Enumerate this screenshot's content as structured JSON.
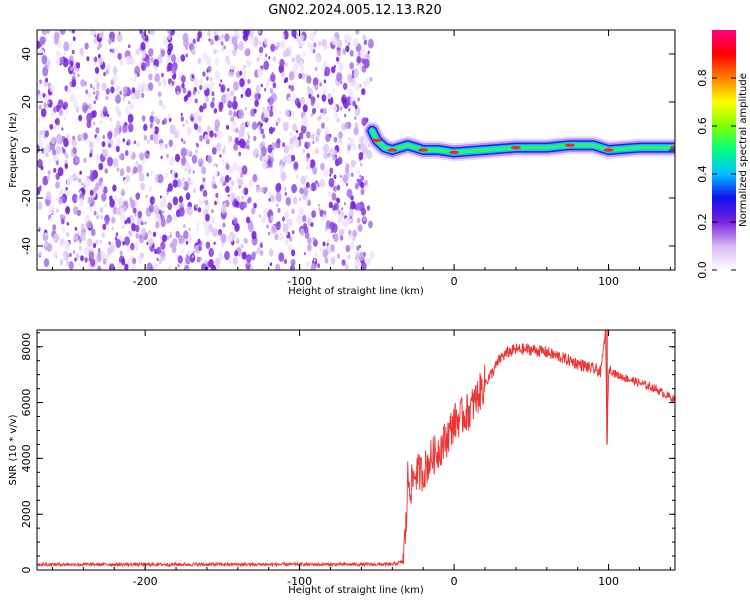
{
  "title": "GN02.2024.005.12.13.R20",
  "chart_data": [
    {
      "type": "heatmap",
      "xlabel": "Height of straight line (km)",
      "ylabel": "Frequency (Hz)",
      "xlim": [
        -270,
        143
      ],
      "ylim": [
        -50,
        50
      ],
      "x_ticks": [
        -200,
        -100,
        0,
        100
      ],
      "y_ticks": [
        -40,
        -20,
        0,
        20,
        40
      ],
      "noise_region_x": [
        -270,
        -53
      ],
      "signal_track": [
        {
          "x": -53,
          "y": 8
        },
        {
          "x": -50,
          "y": 4
        },
        {
          "x": -45,
          "y": 1
        },
        {
          "x": -40,
          "y": 0
        },
        {
          "x": -30,
          "y": 2
        },
        {
          "x": -20,
          "y": 0
        },
        {
          "x": -10,
          "y": 0
        },
        {
          "x": 0,
          "y": -1
        },
        {
          "x": 20,
          "y": 0
        },
        {
          "x": 40,
          "y": 1
        },
        {
          "x": 60,
          "y": 1
        },
        {
          "x": 75,
          "y": 2
        },
        {
          "x": 90,
          "y": 2
        },
        {
          "x": 100,
          "y": 0
        },
        {
          "x": 120,
          "y": 1
        },
        {
          "x": 143,
          "y": 1
        }
      ],
      "colorbar": {
        "label": "Normalized spectral amplitude",
        "ticks": [
          0.0,
          0.2,
          0.4,
          0.6,
          0.8
        ],
        "tick_labels": [
          "0.0",
          "0.2",
          "0.4",
          "0.6",
          "0.8"
        ],
        "range": [
          0,
          1
        ],
        "colors": [
          "#ffffff",
          "#d8b8f0",
          "#7a20e0",
          "#1010f0",
          "#00c0ff",
          "#00ff80",
          "#80ff00",
          "#ffff00",
          "#ff8000",
          "#ff0000",
          "#ff0080"
        ]
      }
    },
    {
      "type": "line",
      "xlabel": "Height of straight line (km)",
      "ylabel": "SNR (10 * v/v)",
      "xlim": [
        -270,
        143
      ],
      "ylim": [
        0,
        8600
      ],
      "x_ticks": [
        -200,
        -100,
        0,
        100
      ],
      "y_ticks": [
        0,
        2000,
        4000,
        6000,
        8000
      ],
      "color": "#ee3333",
      "series": [
        {
          "x": [
            -270,
            -200,
            -100,
            -40,
            -33,
            -31,
            -30,
            -28,
            -25,
            -20,
            -15,
            -10,
            -5,
            0,
            5,
            10,
            15,
            20,
            25,
            30,
            35,
            40,
            50,
            60,
            70,
            80,
            90,
            95,
            98,
            99,
            100,
            101,
            105,
            110,
            120,
            130,
            143
          ],
          "y": [
            200,
            200,
            200,
            200,
            300,
            1700,
            3300,
            3000,
            3500,
            3500,
            4000,
            4300,
            4700,
            5300,
            5500,
            5700,
            6200,
            6700,
            7100,
            7600,
            7800,
            7900,
            7900,
            7800,
            7600,
            7400,
            7200,
            7100,
            8600,
            4500,
            7100,
            7200,
            7000,
            6900,
            6700,
            6500,
            6100
          ]
        }
      ]
    }
  ]
}
